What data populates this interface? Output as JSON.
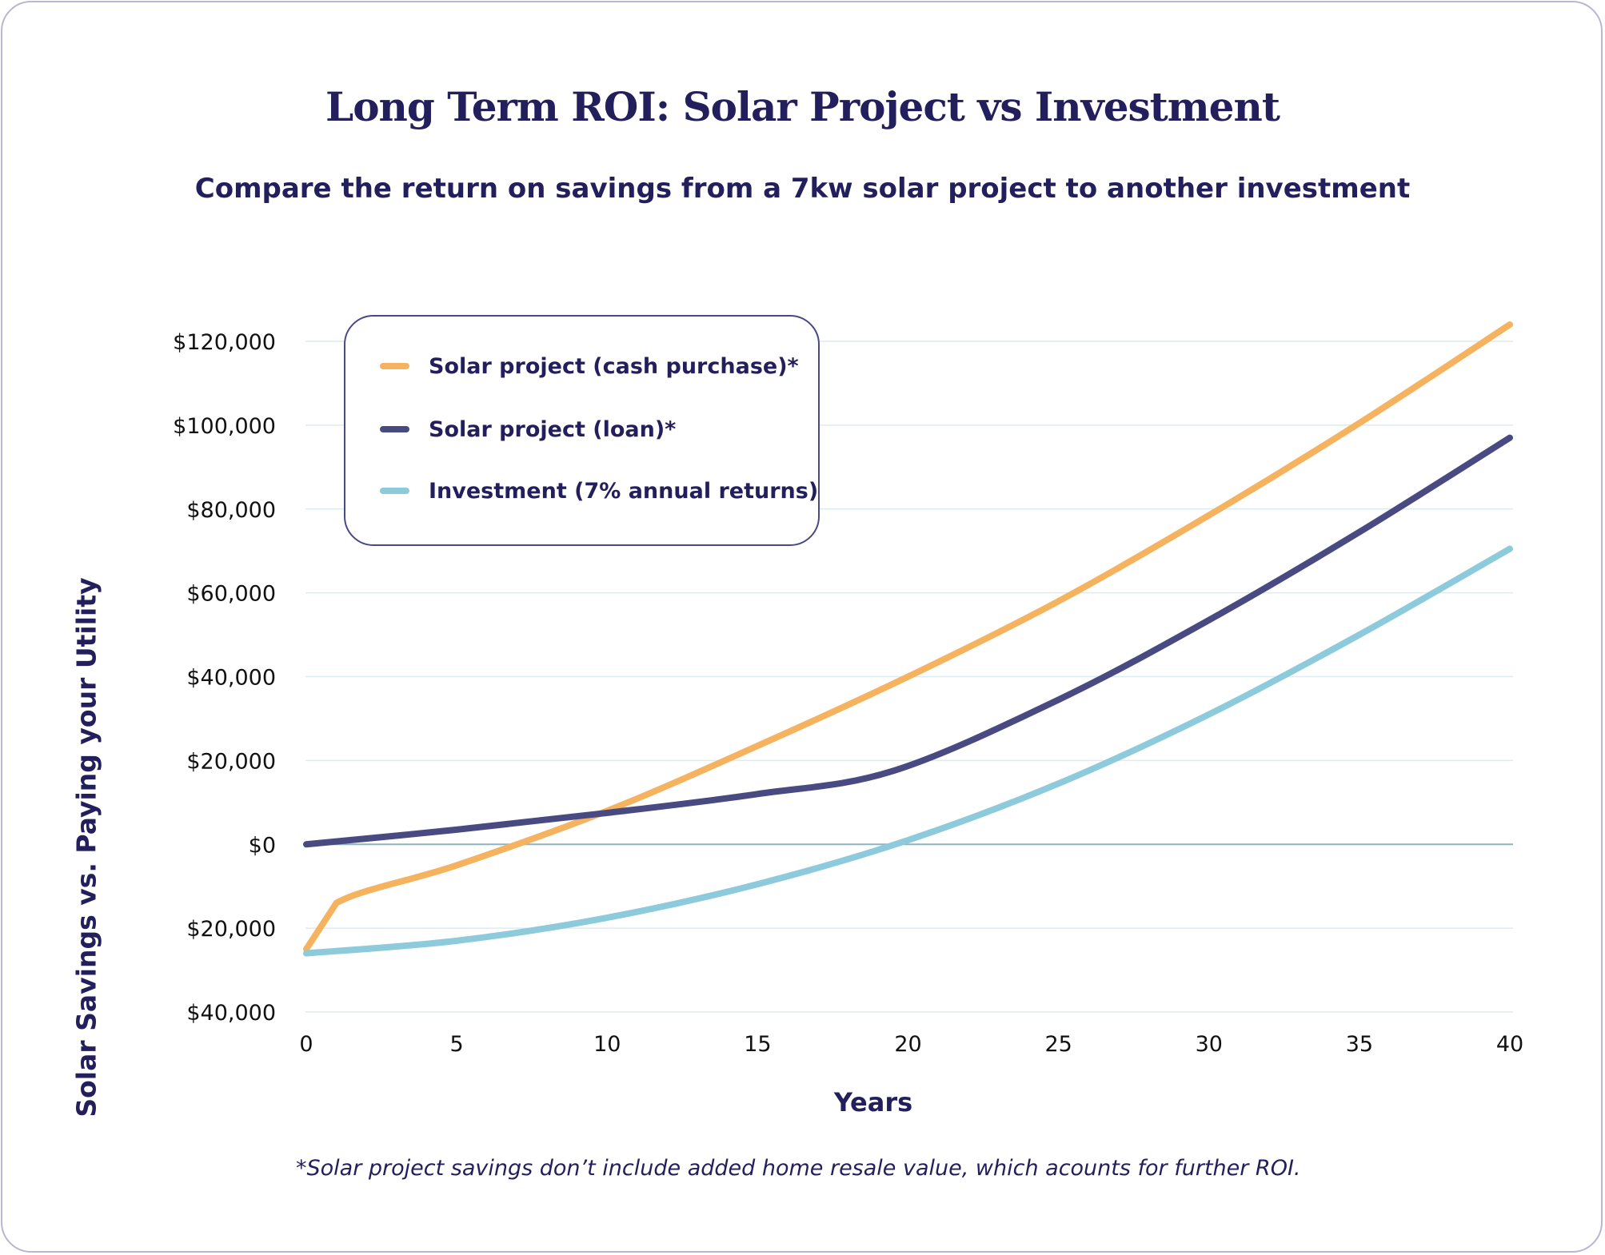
{
  "chart_data": {
    "type": "line",
    "title": "Long Term ROI: Solar Project vs Investment",
    "subtitle": "Compare the return on savings from a 7kw solar project to another investment",
    "xlabel": "Years",
    "ylabel": "Solar Savings vs. Paying your Utility",
    "xlim": [
      0,
      40
    ],
    "ylim": [
      -40000,
      120000
    ],
    "x_ticks": [
      0,
      5,
      10,
      15,
      20,
      25,
      30,
      35,
      40
    ],
    "y_ticks": [
      -40000,
      -20000,
      0,
      20000,
      40000,
      60000,
      80000,
      100000,
      120000
    ],
    "y_tick_labels": [
      "$40,000",
      "$20,000",
      "$0",
      "$20,000",
      "$40,000",
      "$60,000",
      "$80,000",
      "$100,000",
      "$120,000"
    ],
    "grid": "horizontal",
    "legend_position": "top-left",
    "series": [
      {
        "name": "Solar project (cash purchase)*",
        "color": "#f6b35f",
        "x": [
          0,
          1,
          5,
          10,
          15,
          20,
          25,
          30,
          35,
          40
        ],
        "y": [
          -25000,
          -14000,
          -5000,
          8000,
          23500,
          40000,
          58000,
          78500,
          100500,
          124000
        ]
      },
      {
        "name": "Solar project (loan)*",
        "color": "#4a4a82",
        "x": [
          0,
          5,
          10,
          15,
          19.5,
          25,
          30,
          35,
          40
        ],
        "y": [
          0,
          3500,
          7500,
          12000,
          17500,
          34500,
          53500,
          74500,
          97000
        ]
      },
      {
        "name": "Investment (7% annual returns)",
        "color": "#8dcbdc",
        "x": [
          0,
          5,
          10,
          15,
          20,
          25,
          30,
          35,
          40
        ],
        "y": [
          -26000,
          -23000,
          -17500,
          -9500,
          1000,
          14500,
          31000,
          50000,
          70500
        ]
      }
    ]
  },
  "footnote": "*Solar project savings don’t include added home resale value, which acounts for further ROI.",
  "colors": {
    "text": "#231f5c",
    "grid": "#dcecf3",
    "zero_line": "#8fb3c4",
    "card_border": "#b9b6d4"
  }
}
